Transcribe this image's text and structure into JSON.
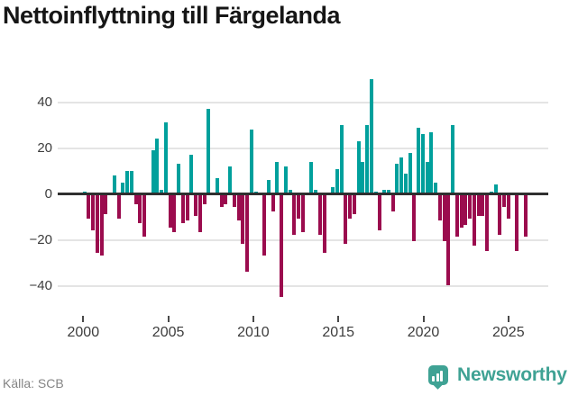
{
  "title": "Nettoinflyttning till Färgelanda",
  "source": {
    "label": "Källa: SCB"
  },
  "branding": {
    "name": "Newsworthy",
    "icon": "speech-bubble-bar-chart"
  },
  "colors": {
    "positive": "#00a09c",
    "negative": "#9b0c4e",
    "brand": "#3fa294",
    "grid": "#e4e4e4",
    "zero_axis": "#2f2f2f",
    "tick_label": "#3d3d3d",
    "title": "#161616",
    "source_text": "#848484"
  },
  "chart_data": {
    "type": "bar",
    "title": "Nettoinflyttning till Färgelanda",
    "frequency": "quarterly",
    "start": "2000Q1",
    "end": "2025Q4",
    "grid": true,
    "ylim": [
      -48,
      55
    ],
    "yticks": [
      40,
      20,
      0,
      -20,
      -40
    ],
    "ytick_labels": [
      "40",
      "20",
      "0",
      "−20",
      "−40"
    ],
    "xticks": [
      2000,
      2005,
      2010,
      2015,
      2020,
      2025
    ],
    "xtick_labels": [
      "2000",
      "2005",
      "2010",
      "2015",
      "2020",
      "2025"
    ],
    "values_by_year": [
      {
        "year": 2000,
        "q": [
          1,
          -10,
          -15,
          -25
        ]
      },
      {
        "year": 2001,
        "q": [
          -26,
          -8,
          0,
          8
        ]
      },
      {
        "year": 2002,
        "q": [
          -10,
          5,
          10,
          10
        ]
      },
      {
        "year": 2003,
        "q": [
          -4,
          -12,
          -18,
          0
        ]
      },
      {
        "year": 2004,
        "q": [
          19,
          24,
          2,
          31
        ]
      },
      {
        "year": 2005,
        "q": [
          -14,
          -16,
          13,
          -12
        ]
      },
      {
        "year": 2006,
        "q": [
          -11,
          17,
          -9,
          -16
        ]
      },
      {
        "year": 2007,
        "q": [
          -4,
          37,
          0,
          7
        ]
      },
      {
        "year": 2008,
        "q": [
          -5,
          -4,
          12,
          -5
        ]
      },
      {
        "year": 2009,
        "q": [
          -11,
          -21,
          -33,
          28
        ]
      },
      {
        "year": 2010,
        "q": [
          1,
          0,
          -26,
          6
        ]
      },
      {
        "year": 2011,
        "q": [
          -7,
          14,
          -44,
          12
        ]
      },
      {
        "year": 2012,
        "q": [
          2,
          -17,
          -10,
          -16
        ]
      },
      {
        "year": 2013,
        "q": [
          0,
          14,
          2,
          -17
        ]
      },
      {
        "year": 2014,
        "q": [
          -25,
          0,
          3,
          11
        ]
      },
      {
        "year": 2015,
        "q": [
          30,
          -21,
          -10,
          -8
        ]
      },
      {
        "year": 2016,
        "q": [
          23,
          14,
          30,
          50
        ]
      },
      {
        "year": 2017,
        "q": [
          1,
          -15,
          2,
          2
        ]
      },
      {
        "year": 2018,
        "q": [
          -7,
          13,
          16,
          9
        ]
      },
      {
        "year": 2019,
        "q": [
          18,
          -20,
          29,
          26
        ]
      },
      {
        "year": 2020,
        "q": [
          14,
          27,
          5,
          -11
        ]
      },
      {
        "year": 2021,
        "q": [
          -20,
          -39,
          30,
          -18
        ]
      },
      {
        "year": 2022,
        "q": [
          -14,
          -13,
          -10,
          -22
        ]
      },
      {
        "year": 2023,
        "q": [
          -9,
          -9,
          -24,
          1
        ]
      },
      {
        "year": 2024,
        "q": [
          4,
          -17,
          -5,
          -10
        ]
      },
      {
        "year": 2025,
        "q": [
          0,
          -24,
          0,
          -18
        ]
      }
    ]
  }
}
